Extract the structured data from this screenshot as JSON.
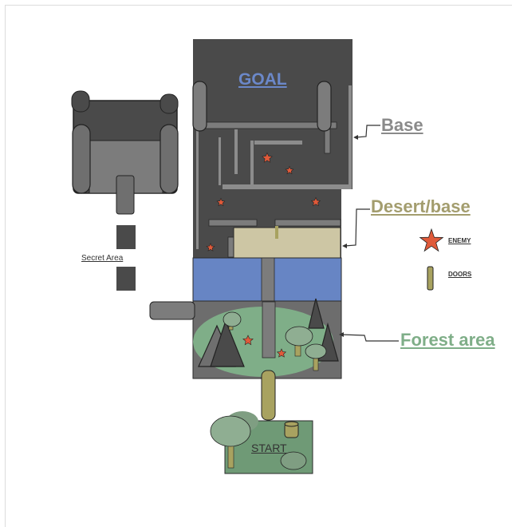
{
  "labels": {
    "goal": "GOAL",
    "base": "Base",
    "desert_base": "Desert/base",
    "forest_area": "Forest area",
    "secret_area": "Secret Area",
    "start": "START"
  },
  "legend": {
    "enemy": "ENEMY",
    "doors": "DOORS"
  },
  "colors": {
    "base_dark": "#4a4a4a",
    "tower_gray": "#6f6f6f",
    "wall_gray": "#8c8c8c",
    "desert_sand": "#cdc6a4",
    "water_blue": "#6785c4",
    "forest_green": "#7fae88",
    "tree_green": "#8fae92",
    "start_green": "#6f9a76",
    "door_olive": "#a8a260",
    "enemy_red": "#e05a3a"
  }
}
